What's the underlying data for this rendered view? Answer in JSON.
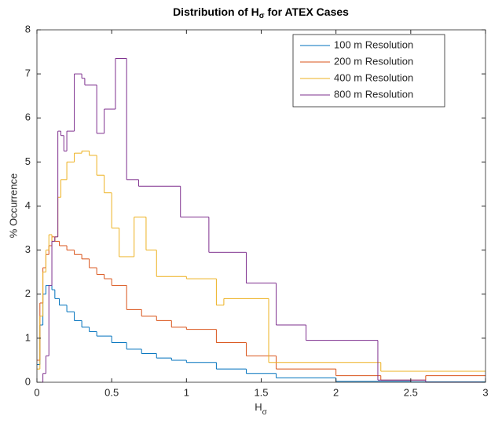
{
  "chart_data": {
    "type": "stairs",
    "title": [
      "Distribution of H",
      "σ",
      " for ATEX Cases"
    ],
    "xlabel": [
      "H",
      "σ"
    ],
    "ylabel": "% Occurrence",
    "xlim": [
      0,
      3
    ],
    "ylim": [
      0,
      8
    ],
    "xticks": [
      0,
      0.5,
      1,
      1.5,
      2,
      2.5,
      3
    ],
    "yticks": [
      0,
      1,
      2,
      3,
      4,
      5,
      6,
      7,
      8
    ],
    "grid": false,
    "legend": "top-right",
    "series": [
      {
        "name": "100 m Resolution",
        "color": "#0072BD",
        "bins": [
          0,
          0.02,
          0.04,
          0.06,
          0.08,
          0.1,
          0.12,
          0.15,
          0.2,
          0.25,
          0.3,
          0.35,
          0.4,
          0.5,
          0.6,
          0.7,
          0.8,
          0.9,
          1.0,
          1.2,
          1.4,
          1.6,
          2.0,
          2.5,
          3
        ],
        "values": [
          0.4,
          1.3,
          2.0,
          2.2,
          2.2,
          2.1,
          1.9,
          1.75,
          1.6,
          1.4,
          1.25,
          1.15,
          1.05,
          0.9,
          0.75,
          0.65,
          0.55,
          0.5,
          0.45,
          0.3,
          0.2,
          0.1,
          0.02,
          0.01
        ]
      },
      {
        "name": "200 m Resolution",
        "color": "#D95319",
        "bins": [
          0,
          0.02,
          0.04,
          0.06,
          0.08,
          0.1,
          0.12,
          0.15,
          0.2,
          0.25,
          0.3,
          0.35,
          0.4,
          0.45,
          0.5,
          0.6,
          0.7,
          0.8,
          0.9,
          1.0,
          1.2,
          1.4,
          1.6,
          2.0,
          2.3,
          2.6,
          3
        ],
        "values": [
          0.5,
          1.8,
          2.6,
          2.9,
          3.1,
          3.3,
          3.2,
          3.1,
          3.0,
          2.9,
          2.8,
          2.6,
          2.45,
          2.35,
          2.2,
          1.65,
          1.5,
          1.4,
          1.25,
          1.2,
          0.9,
          0.6,
          0.3,
          0.15,
          0.05,
          0.15
        ]
      },
      {
        "name": "400 m Resolution",
        "color": "#EDB120",
        "bins": [
          0,
          0.02,
          0.04,
          0.06,
          0.08,
          0.1,
          0.12,
          0.14,
          0.16,
          0.2,
          0.25,
          0.3,
          0.35,
          0.4,
          0.45,
          0.5,
          0.55,
          0.65,
          0.73,
          0.8,
          1.0,
          1.2,
          1.25,
          1.55,
          2.3,
          3
        ],
        "values": [
          0.3,
          1.5,
          2.5,
          3.0,
          3.35,
          3.2,
          3.3,
          4.2,
          4.6,
          5.0,
          5.2,
          5.25,
          5.15,
          4.7,
          4.3,
          3.5,
          2.85,
          3.75,
          3.0,
          2.4,
          2.35,
          1.75,
          1.9,
          0.45,
          0.25
        ]
      },
      {
        "name": "800 m Resolution",
        "color": "#7E2F8E",
        "bins": [
          0,
          0.04,
          0.06,
          0.08,
          0.1,
          0.12,
          0.14,
          0.16,
          0.18,
          0.2,
          0.25,
          0.3,
          0.32,
          0.4,
          0.45,
          0.525,
          0.6,
          0.68,
          0.96,
          1.15,
          1.4,
          1.6,
          1.8,
          2.28,
          2.6,
          3
        ],
        "values": [
          0,
          0.2,
          0.6,
          2.2,
          3.2,
          3.3,
          5.7,
          5.6,
          5.25,
          5.7,
          7.0,
          6.9,
          6.75,
          5.65,
          6.2,
          7.35,
          4.6,
          4.45,
          3.75,
          2.95,
          2.25,
          1.3,
          0.95,
          0.05,
          0
        ]
      }
    ]
  }
}
